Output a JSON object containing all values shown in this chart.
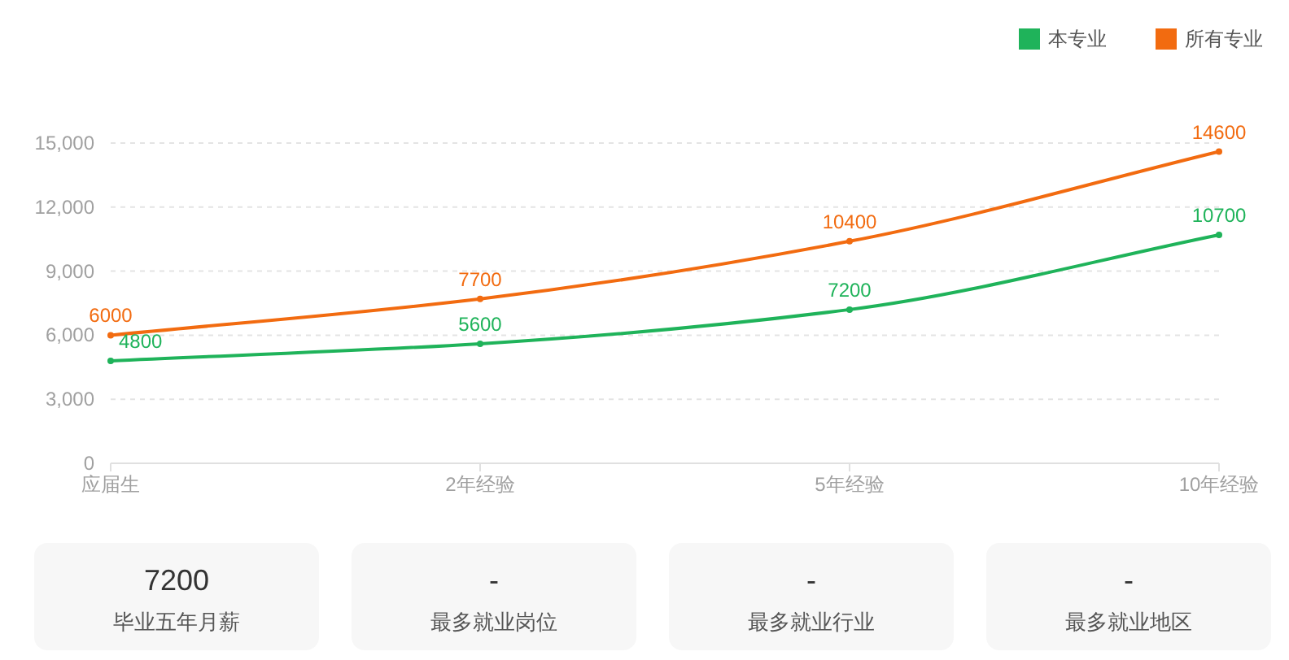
{
  "chart_data": {
    "type": "line",
    "categories": [
      "应届生",
      "2年经验",
      "5年经验",
      "10年经验"
    ],
    "series": [
      {
        "name": "本专业",
        "color": "#1fb35a",
        "values": [
          4800,
          5600,
          7200,
          10700
        ]
      },
      {
        "name": "所有专业",
        "color": "#f26b10",
        "values": [
          6000,
          7700,
          10400,
          14600
        ]
      }
    ],
    "ylim": [
      0,
      15000
    ],
    "yticks": [
      0,
      {
        "value": 3000,
        "label": "3,000"
      },
      {
        "value": 6000,
        "label": "6,000"
      },
      {
        "value": 9000,
        "label": "9,000"
      },
      {
        "value": 12000,
        "label": "12,000"
      },
      {
        "value": 15000,
        "label": "15,000"
      }
    ],
    "grid": "y",
    "legend": "top right",
    "data_labels": true,
    "marker": "circle",
    "line_style": "solid",
    "annotations": [
      "7200",
      "毕业五年月薪",
      "-",
      "最多就业岗位",
      "-",
      "最多就业行业",
      "-",
      "最多就业地区"
    ]
  }
}
